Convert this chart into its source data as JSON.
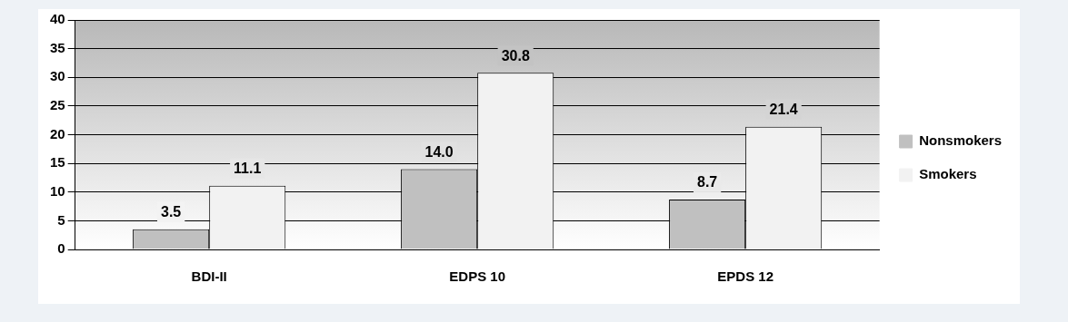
{
  "chart_data": {
    "type": "bar",
    "categories": [
      "BDI-II",
      "EDPS 10",
      "EPDS 12"
    ],
    "series": [
      {
        "name": "Nonsmokers",
        "color": "#c0c0c0",
        "values": [
          3.5,
          14.0,
          8.7
        ],
        "value_labels": [
          "3.5",
          "14.0",
          "8.7"
        ]
      },
      {
        "name": "Smokers",
        "color": "#f2f2f2",
        "values": [
          11.1,
          30.8,
          21.4
        ],
        "value_labels": [
          "11.1",
          "30.8",
          "21.4"
        ]
      }
    ],
    "ylim": [
      0,
      40
    ],
    "yticks": [
      0,
      5,
      10,
      15,
      20,
      25,
      30,
      35,
      40
    ],
    "grid": "y",
    "legend": "right"
  }
}
